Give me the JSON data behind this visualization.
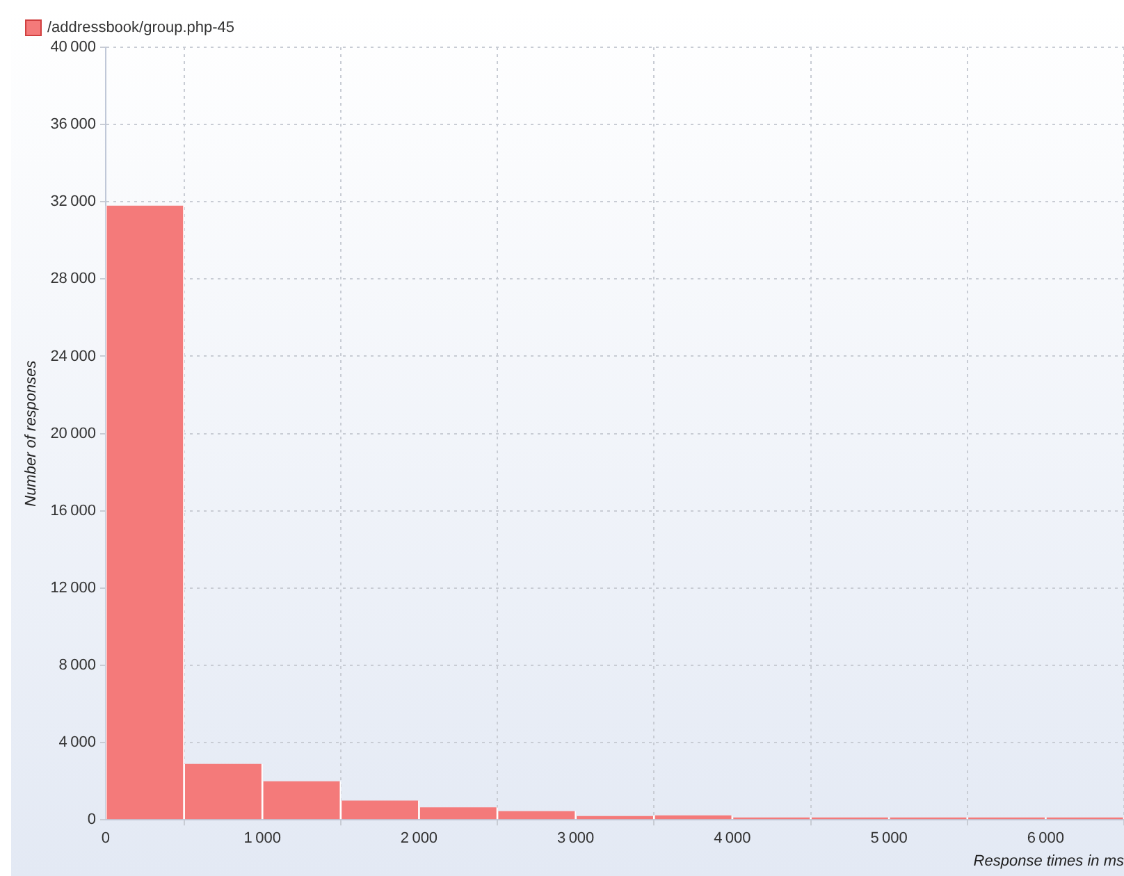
{
  "chart_data": {
    "type": "histogram",
    "xlabel": "Response times in ms",
    "ylabel": "Number of responses",
    "bins": [
      0,
      500,
      1000,
      1500,
      2000,
      2500,
      3000,
      3500,
      4000,
      4500,
      5000,
      5500,
      6000,
      6500
    ],
    "series": [
      {
        "name": "/addressbook/group.php-45",
        "color": "#f47a7a",
        "values": [
          31800,
          2900,
          2000,
          1000,
          650,
          450,
          200,
          230,
          120,
          120,
          120,
          120,
          120
        ]
      }
    ],
    "xlim": [
      0,
      6500
    ],
    "xticks": [
      0,
      1000,
      2000,
      3000,
      4000,
      5000,
      6000
    ],
    "ylim": [
      0,
      40000
    ],
    "yticks": [
      0,
      4000,
      8000,
      12000,
      16000,
      20000,
      24000,
      28000,
      32000,
      36000,
      40000
    ],
    "grid": true,
    "legend": "top left"
  }
}
